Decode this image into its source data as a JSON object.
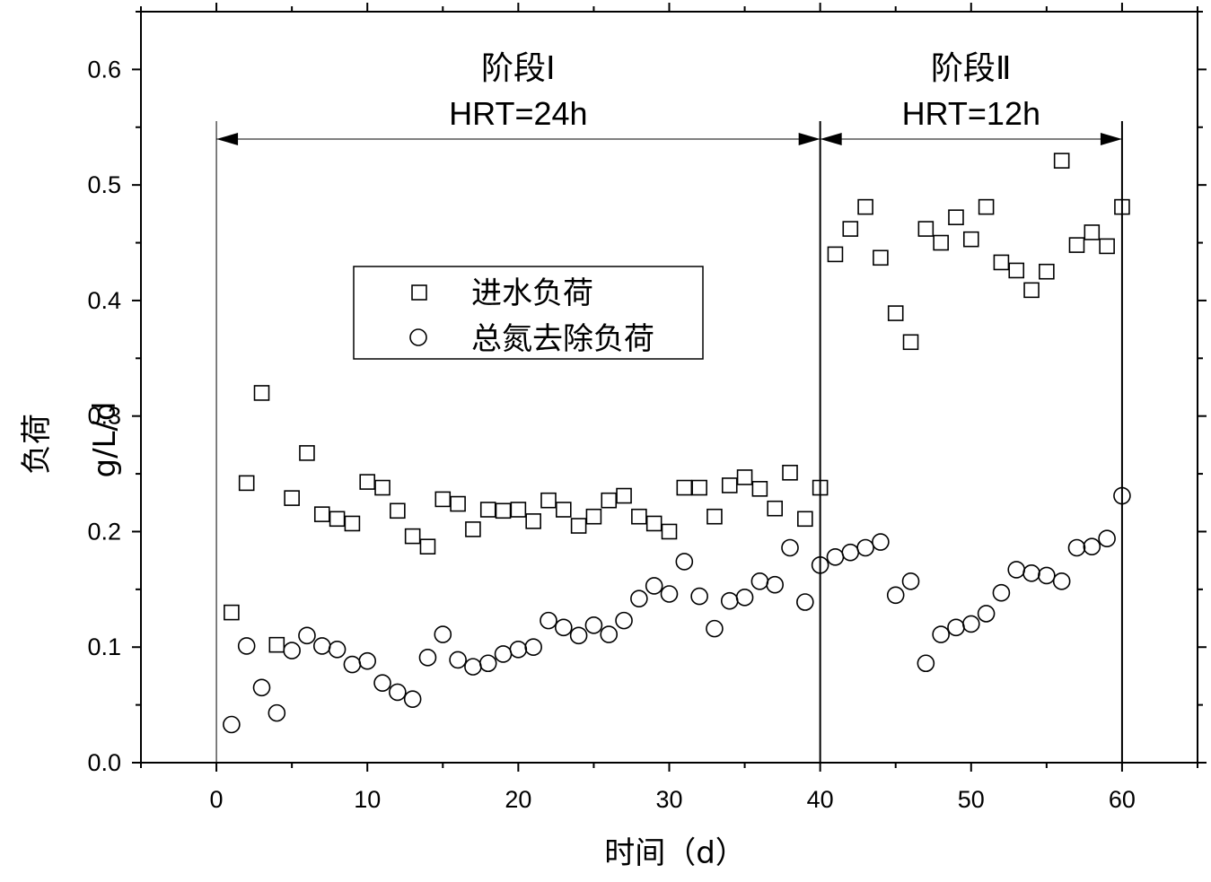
{
  "chart_data": {
    "type": "scatter",
    "xlabel": "时间（d）",
    "ylabel_main": "负荷",
    "ylabel_unit": "g/L/d",
    "xlim": [
      -5,
      65
    ],
    "ylim": [
      0.0,
      0.65
    ],
    "xticks": [
      0,
      10,
      20,
      30,
      40,
      50,
      60
    ],
    "yticks": [
      "0.0",
      "0.1",
      "0.2",
      "0.3",
      "0.4",
      "0.5",
      "0.6"
    ],
    "grid": false,
    "legend_position": "upper-left-center",
    "stages": [
      {
        "label": "阶段Ⅰ",
        "hrt": "HRT=24h",
        "x_start": 0,
        "x_end": 40
      },
      {
        "label": "阶段Ⅱ",
        "hrt": "HRT=12h",
        "x_start": 40,
        "x_end": 60
      }
    ],
    "series": [
      {
        "name": "进水负荷",
        "marker": "square",
        "x": [
          1,
          2,
          3,
          4,
          5,
          6,
          7,
          8,
          9,
          10,
          11,
          12,
          13,
          14,
          15,
          16,
          17,
          18,
          19,
          20,
          21,
          22,
          23,
          24,
          25,
          26,
          27,
          28,
          29,
          30,
          31,
          32,
          33,
          34,
          35,
          36,
          37,
          38,
          39,
          40,
          41,
          42,
          43,
          44,
          45,
          46,
          47,
          48,
          49,
          50,
          51,
          52,
          53,
          54,
          55,
          56,
          57,
          58,
          59,
          60
        ],
        "y": [
          0.13,
          0.242,
          0.32,
          0.102,
          0.229,
          0.268,
          0.215,
          0.211,
          0.207,
          0.243,
          0.238,
          0.218,
          0.196,
          0.187,
          0.228,
          0.224,
          0.202,
          0.219,
          0.218,
          0.219,
          0.209,
          0.227,
          0.219,
          0.205,
          0.213,
          0.227,
          0.231,
          0.213,
          0.207,
          0.2,
          0.238,
          0.238,
          0.213,
          0.24,
          0.247,
          0.237,
          0.22,
          0.251,
          0.211,
          0.238,
          0.44,
          0.462,
          0.481,
          0.437,
          0.389,
          0.364,
          0.462,
          0.45,
          0.472,
          0.453,
          0.481,
          0.433,
          0.426,
          0.409,
          0.425,
          0.521,
          0.448,
          0.459,
          0.447,
          0.481
        ]
      },
      {
        "name": "总氮去除负荷",
        "marker": "circle",
        "x": [
          1,
          2,
          3,
          4,
          5,
          6,
          7,
          8,
          9,
          10,
          11,
          12,
          13,
          14,
          15,
          16,
          17,
          18,
          19,
          20,
          21,
          22,
          23,
          24,
          25,
          26,
          27,
          28,
          29,
          30,
          31,
          32,
          33,
          34,
          35,
          36,
          37,
          38,
          39,
          40,
          41,
          42,
          43,
          44,
          45,
          46,
          47,
          48,
          49,
          50,
          51,
          52,
          53,
          54,
          55,
          56,
          57,
          58,
          59,
          60
        ],
        "y": [
          0.033,
          0.101,
          0.065,
          0.043,
          0.097,
          0.11,
          0.101,
          0.098,
          0.085,
          0.088,
          0.069,
          0.061,
          0.055,
          0.091,
          0.111,
          0.089,
          0.083,
          0.086,
          0.094,
          0.098,
          0.1,
          0.123,
          0.117,
          0.11,
          0.119,
          0.111,
          0.123,
          0.142,
          0.153,
          0.146,
          0.174,
          0.144,
          0.116,
          0.14,
          0.143,
          0.157,
          0.154,
          0.186,
          0.139,
          0.171,
          0.178,
          0.182,
          0.186,
          0.191,
          0.145,
          0.157,
          0.086,
          0.111,
          0.117,
          0.12,
          0.129,
          0.147,
          0.167,
          0.164,
          0.162,
          0.157,
          0.186,
          0.187,
          0.194,
          0.231
        ]
      }
    ]
  }
}
